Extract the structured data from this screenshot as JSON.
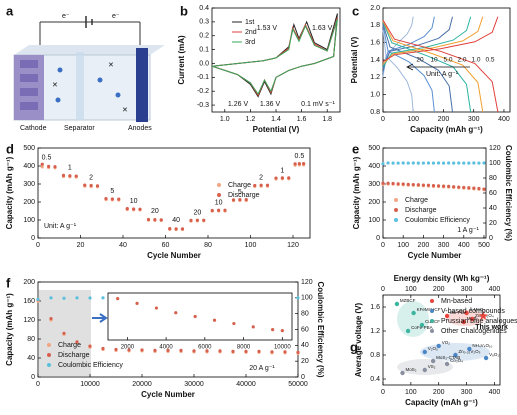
{
  "diagram": {
    "panel": "a",
    "electron_left": "e⁻",
    "electron_right": "e⁻",
    "cathode": "Cathode",
    "separator": "Separator",
    "anode": "Anodes"
  },
  "chart_data": [
    {
      "panel": "b",
      "type": "line",
      "xlabel": "Potential (V)",
      "ylabel": "Current (mA)",
      "xlim": [
        0.9,
        1.9
      ],
      "xticks": [
        {
          "value": 1,
          "label": "1.0"
        },
        1.2,
        1.4,
        1.6,
        1.8
      ],
      "ylim": [
        -0.35,
        0.4
      ],
      "yticks": [
        -0.3,
        -0.2,
        -0.1,
        {
          "value": 0,
          "label": "0.0"
        },
        0.1,
        0.2,
        0.3,
        0.4
      ],
      "series": [
        {
          "name": "1st",
          "color": "#222222",
          "x": [
            0.9,
            1.1,
            1.3,
            1.4,
            1.5,
            1.54,
            1.58,
            1.64,
            1.7,
            1.8,
            1.88,
            1.85,
            1.7,
            1.6,
            1.5,
            1.4,
            1.36,
            1.31,
            1.26,
            1.2,
            1.1,
            1.0,
            0.9
          ],
          "values": [
            -0.02,
            0.0,
            0.02,
            0.04,
            0.12,
            0.28,
            0.18,
            0.3,
            0.15,
            0.1,
            0.36,
            0.05,
            0.0,
            -0.02,
            -0.05,
            -0.1,
            -0.22,
            -0.13,
            -0.24,
            -0.15,
            -0.08,
            -0.05,
            -0.02
          ]
        },
        {
          "name": "2nd",
          "color": "#e0403a",
          "x": [
            0.9,
            1.1,
            1.3,
            1.4,
            1.5,
            1.53,
            1.58,
            1.63,
            1.7,
            1.8,
            1.88,
            1.85,
            1.7,
            1.6,
            1.5,
            1.4,
            1.36,
            1.31,
            1.26,
            1.2,
            1.1,
            1.0,
            0.9
          ],
          "values": [
            -0.02,
            0.0,
            0.02,
            0.04,
            0.11,
            0.26,
            0.17,
            0.28,
            0.14,
            0.09,
            0.33,
            0.05,
            0.0,
            -0.02,
            -0.05,
            -0.1,
            -0.21,
            -0.12,
            -0.23,
            -0.14,
            -0.08,
            -0.05,
            -0.02
          ]
        },
        {
          "name": "3rd",
          "color": "#3aa55a",
          "x": [
            0.9,
            1.1,
            1.3,
            1.4,
            1.5,
            1.53,
            1.58,
            1.63,
            1.7,
            1.8,
            1.88,
            1.85,
            1.7,
            1.6,
            1.5,
            1.4,
            1.36,
            1.31,
            1.26,
            1.2,
            1.1,
            1.0,
            0.9
          ],
          "values": [
            -0.02,
            0.0,
            0.02,
            0.04,
            0.1,
            0.25,
            0.16,
            0.27,
            0.13,
            0.09,
            0.32,
            0.05,
            0.0,
            -0.02,
            -0.05,
            -0.1,
            -0.2,
            -0.12,
            -0.22,
            -0.14,
            -0.08,
            -0.05,
            -0.02
          ]
        }
      ],
      "annotations": [
        "1.53 V",
        "1.63 V",
        "1.26 V",
        "1.36 V",
        "0.1 mV s⁻¹"
      ]
    },
    {
      "panel": "c",
      "type": "line",
      "xlabel": "Capacity (mAh g⁻¹)",
      "ylabel": "Potential (V)",
      "xlim": [
        0,
        420
      ],
      "xticks": [
        0,
        100,
        200,
        300,
        400
      ],
      "ylim": [
        0.8,
        2.0
      ],
      "yticks": [
        0.8,
        {
          "value": 1,
          "label": "1.0"
        },
        1.2,
        1.4,
        1.6,
        1.8,
        {
          "value": 2,
          "label": "2.0"
        }
      ],
      "series": [
        {
          "name": "20",
          "color": "#9db8d9",
          "x": [
            0,
            10,
            50,
            80,
            95,
            100,
            null,
            0,
            10,
            50,
            80,
            95,
            100
          ],
          "values": [
            1.2,
            1.45,
            1.6,
            1.7,
            1.8,
            1.9,
            null,
            1.75,
            1.45,
            1.3,
            1.15,
            1.0,
            0.8
          ]
        },
        {
          "name": "10",
          "color": "#5b8fd1",
          "x": [
            0,
            17,
            85,
            136,
            162,
            170,
            null,
            0,
            17,
            85,
            136,
            162,
            170
          ],
          "values": [
            1.25,
            1.5,
            1.58,
            1.67,
            1.77,
            1.9,
            null,
            1.8,
            1.5,
            1.38,
            1.22,
            1.05,
            0.8
          ]
        },
        {
          "name": "5.0",
          "color": "#4a6fa5",
          "x": [
            0,
            23,
            115,
            184,
            219,
            230,
            null,
            0,
            23,
            115,
            184,
            219,
            230
          ],
          "values": [
            1.3,
            1.5,
            1.57,
            1.65,
            1.75,
            1.9,
            null,
            1.82,
            1.55,
            1.42,
            1.28,
            1.1,
            0.8
          ]
        },
        {
          "name": "2.0",
          "color": "#2bb3a3",
          "x": [
            0,
            29,
            145,
            232,
            276,
            290,
            null,
            0,
            29,
            145,
            232,
            276,
            290
          ],
          "values": [
            1.32,
            1.48,
            1.55,
            1.63,
            1.74,
            1.9,
            null,
            1.84,
            1.6,
            1.45,
            1.32,
            1.12,
            0.8
          ]
        },
        {
          "name": "1.0",
          "color": "#f0a030",
          "x": [
            0,
            33,
            165,
            264,
            314,
            330,
            null,
            0,
            33,
            165,
            264,
            314,
            330
          ],
          "values": [
            1.35,
            1.47,
            1.54,
            1.62,
            1.73,
            1.9,
            null,
            1.85,
            1.62,
            1.47,
            1.34,
            1.14,
            0.8
          ]
        },
        {
          "name": "0.5",
          "color": "#e0403a",
          "x": [
            0,
            38,
            190,
            304,
            361,
            380,
            null,
            0,
            38,
            190,
            304,
            361,
            380
          ],
          "values": [
            1.38,
            1.46,
            1.53,
            1.61,
            1.72,
            1.9,
            null,
            1.86,
            1.64,
            1.5,
            1.36,
            1.15,
            0.8
          ]
        }
      ],
      "annotations": [
        "Unit: A g⁻¹"
      ]
    },
    {
      "panel": "d",
      "type": "scatter",
      "xlabel": "Cycle Number",
      "ylabel": "Capacity (mAh g⁻¹)",
      "xlim": [
        0,
        128
      ],
      "xticks": [
        0,
        20,
        40,
        60,
        80,
        100,
        120
      ],
      "ylim": [
        0,
        500
      ],
      "yticks": [
        0,
        100,
        200,
        300,
        400,
        500
      ],
      "x": [
        2,
        5,
        8,
        12,
        15,
        18,
        22,
        25,
        28,
        32,
        35,
        38,
        42,
        45,
        48,
        52,
        55,
        58,
        62,
        65,
        68,
        72,
        75,
        78,
        82,
        85,
        88,
        92,
        95,
        98,
        102,
        105,
        108,
        112,
        115,
        118,
        121,
        123,
        125
      ],
      "series": [
        {
          "name": "Charge",
          "color": "#f4a582",
          "values": [
            395,
            392,
            390,
            342,
            340,
            339,
            288,
            286,
            285,
            214,
            212,
            211,
            158,
            157,
            156,
            99,
            98,
            97,
            48,
            47,
            47,
            94,
            95,
            95,
            149,
            150,
            150,
            208,
            209,
            209,
            287,
            288,
            288,
            328,
            329,
            329,
            405,
            406,
            406
          ]
        },
        {
          "name": "Discharge",
          "color": "#d6604d",
          "values": [
            410,
            398,
            396,
            348,
            346,
            344,
            294,
            292,
            290,
            219,
            217,
            216,
            163,
            161,
            160,
            103,
            102,
            101,
            52,
            51,
            51,
            98,
            99,
            99,
            153,
            154,
            154,
            212,
            213,
            213,
            292,
            293,
            293,
            333,
            334,
            334,
            412,
            413,
            413
          ]
        }
      ],
      "annotations": [
        "0.5",
        "1",
        "2",
        "5",
        "10",
        "20",
        "40",
        "20",
        "10",
        "5",
        "2",
        "1",
        "0.5",
        "Unit: A g⁻¹"
      ]
    },
    {
      "panel": "e",
      "type": "scatter",
      "xlabel": "Cycle Number",
      "ylabel": "Capacity (mAh g⁻¹)",
      "y2label": "Coulombic Efficiency (%)",
      "xlim": [
        0,
        510
      ],
      "xticks": [
        0,
        100,
        200,
        300,
        400,
        500
      ],
      "ylim": [
        0,
        500
      ],
      "yticks": [
        0,
        100,
        200,
        300,
        400,
        500
      ],
      "y2lim": [
        0,
        120
      ],
      "y2ticks": [
        0,
        20,
        40,
        60,
        80,
        100,
        120
      ],
      "x": [
        0,
        25,
        50,
        75,
        100,
        125,
        150,
        175,
        200,
        225,
        250,
        275,
        300,
        325,
        350,
        375,
        400,
        425,
        450,
        475,
        500
      ],
      "series": [
        {
          "name": "Charge",
          "color": "#f4a582",
          "values": [
            298,
            300,
            299,
            297,
            296,
            294,
            293,
            292,
            290,
            289,
            287,
            286,
            284,
            283,
            281,
            279,
            277,
            275,
            273,
            271,
            268
          ]
        },
        {
          "name": "Discharge",
          "color": "#d6604d",
          "values": [
            305,
            304,
            303,
            301,
            300,
            298,
            297,
            296,
            294,
            293,
            291,
            290,
            288,
            287,
            285,
            283,
            281,
            279,
            277,
            275,
            272
          ]
        },
        {
          "name": "Coulombic Efficiency",
          "color": "#5bc0de",
          "axis": "y2",
          "values": [
            99,
            100,
            99.8,
            99.9,
            100,
            99.9,
            100,
            99.8,
            99.9,
            100,
            99.9,
            100,
            99.8,
            100,
            99.9,
            100,
            99.9,
            99.8,
            100,
            99.9,
            100
          ]
        }
      ],
      "annotations": [
        "1 A g⁻¹"
      ]
    },
    {
      "panel": "f",
      "type": "scatter",
      "xlabel": "Cycle Number",
      "ylabel": "Capacity (mAh g⁻¹)",
      "y2label": "Coulombic Efficiency (%)",
      "xlim": [
        0,
        50000
      ],
      "xticks": [
        0,
        10000,
        20000,
        30000,
        40000,
        50000
      ],
      "ylim": [
        0,
        200
      ],
      "yticks": [
        0,
        40,
        80,
        120,
        160,
        200
      ],
      "y2lim": [
        0,
        120
      ],
      "y2ticks": [
        0,
        20,
        40,
        60,
        80,
        100,
        120
      ],
      "x": [
        0,
        2500,
        5000,
        7500,
        10000,
        12500,
        15000,
        17500,
        20000,
        22500,
        25000,
        27500,
        30000,
        32500,
        35000,
        37500,
        40000,
        42500,
        45000,
        47500,
        50000
      ],
      "series": [
        {
          "name": "Charge",
          "color": "#f4a582",
          "values": [
            160,
            120,
            90,
            72,
            63,
            58,
            56,
            55,
            55,
            54,
            54,
            54,
            53,
            53,
            53,
            52,
            52,
            52,
            51,
            51,
            50
          ]
        },
        {
          "name": "Discharge",
          "color": "#d6604d",
          "values": [
            163,
            123,
            92,
            74,
            65,
            60,
            58,
            57,
            57,
            56,
            56,
            56,
            55,
            55,
            55,
            54,
            54,
            54,
            53,
            53,
            52
          ]
        },
        {
          "name": "Coulombic Efficiency",
          "color": "#5bc0de",
          "axis": "y2",
          "values": [
            98,
            100,
            99.5,
            100,
            99.8,
            100,
            99.7,
            100,
            99.9,
            99.6,
            100,
            99.8,
            100,
            99.7,
            99.9,
            100,
            99.6,
            100,
            99.8,
            99.9,
            100
          ]
        }
      ],
      "annotations": [
        "20 A g⁻¹"
      ]
    },
    {
      "type": "scatter",
      "xlim": [
        1000,
        10500
      ],
      "xticks": [
        2000,
        4000,
        6000,
        8000,
        10000
      ],
      "ylim": [
        40,
        140
      ],
      "color": "#d6604d",
      "x": [
        1500,
        2500,
        3500,
        4500,
        5500,
        6500,
        7500,
        8500,
        9500,
        10000
      ],
      "values": [
        128,
        118,
        108,
        98,
        90,
        82,
        75,
        68,
        62,
        60
      ]
    },
    {
      "panel": "g",
      "type": "scatter",
      "xlabel": "Capacity (mAh g⁻¹)",
      "x2label": "Energy density (Wh kg⁻¹)",
      "ylabel": "Average voltage (V)",
      "xlim": [
        0,
        420
      ],
      "xticks": [
        0,
        100,
        200,
        300,
        400
      ],
      "x2lim": [
        0,
        420
      ],
      "x2ticks": [
        0,
        100,
        200,
        300,
        400
      ],
      "ylim": [
        0.3,
        1.8
      ],
      "yticks": [
        0.4,
        0.8,
        1.2,
        1.6
      ],
      "series": [
        {
          "name": "Mn-based",
          "color": "#e8453c",
          "x": [
            230,
            290,
            320,
            300
          ],
          "values": [
            1.45,
            1.35,
            1.4,
            1.5
          ],
          "labels": [
            "Mn-PBA",
            "MnO₂",
            "ZnMn₂O₄",
            "δ-MnO₂"
          ]
        },
        {
          "name": "V-based compounds",
          "color": "#4a86c5",
          "x": [
            150,
            200,
            260,
            310,
            370
          ],
          "values": [
            0.85,
            0.95,
            0.8,
            0.9,
            0.75
          ],
          "labels": [
            "V₂O₅",
            "VO₂",
            "Zn₀.₂₅V₂O₅",
            "NH₄V₄O₁₀",
            "V₆O₁₃"
          ]
        },
        {
          "name": "Prussian blue analogues",
          "color": "#3bb5a0",
          "x": [
            50,
            110,
            140,
            90
          ],
          "values": [
            1.65,
            1.5,
            1.3,
            1.2
          ],
          "labels": [
            "MZBCF",
            "KFeMnHCF",
            "CuHCF",
            "CoFe-PBA"
          ]
        },
        {
          "name": "Other Chalcogenides",
          "color": "#8a8fa0",
          "x": [
            70,
            150,
            230,
            180
          ],
          "values": [
            0.5,
            0.55,
            0.65,
            0.7
          ],
          "labels": [
            "MoS₂",
            "VS₂",
            "Co₃O₄",
            "MoS₂-CTAB"
          ]
        }
      ],
      "highlight": {
        "label": "This work",
        "x": 360,
        "y": 1.45
      }
    }
  ]
}
